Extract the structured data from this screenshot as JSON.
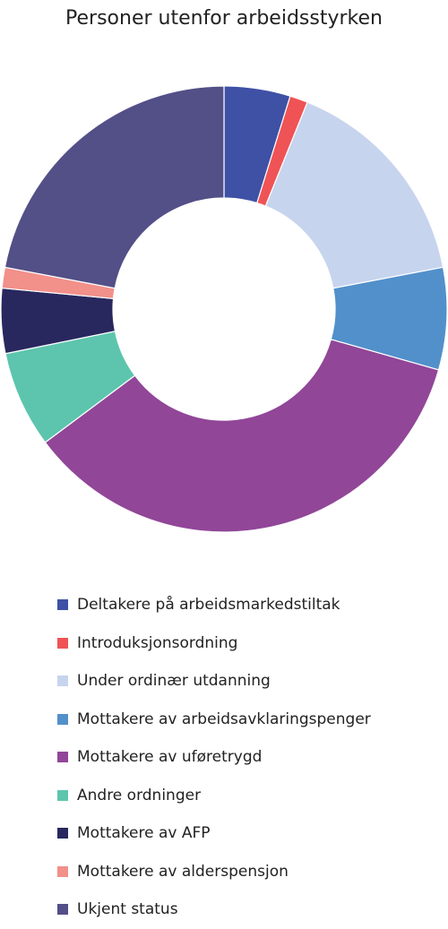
{
  "chart_data": {
    "type": "pie",
    "title": "Personer utenfor arbeidsstyrken",
    "donut": true,
    "legend_position": "bottom",
    "unit": "%",
    "slices": [
      {
        "label": "Deltakere på arbeidsmarkedstiltak",
        "value": 4.8,
        "color": "#3f51a5"
      },
      {
        "label": "Introduksjonsordning",
        "value": 1.3,
        "color": "#ef5355"
      },
      {
        "label": "Under ordinær utdanning",
        "value": 15.9,
        "color": "#c7d4ee"
      },
      {
        "label": "Mottakere av arbeidsavklaringspenger",
        "value": 7.4,
        "color": "#5290cb"
      },
      {
        "label": "Mottakere av uføretrygd",
        "value": 35.4,
        "color": "#914698"
      },
      {
        "label": "Andre ordninger",
        "value": 7.0,
        "color": "#5dc5ad"
      },
      {
        "label": "Mottakere av AFP",
        "value": 4.7,
        "color": "#28285f"
      },
      {
        "label": "Mottakere av alderspensjon",
        "value": 1.5,
        "color": "#f2908a"
      },
      {
        "label": "Ukjent status",
        "value": 22.0,
        "color": "#534f87"
      }
    ]
  }
}
